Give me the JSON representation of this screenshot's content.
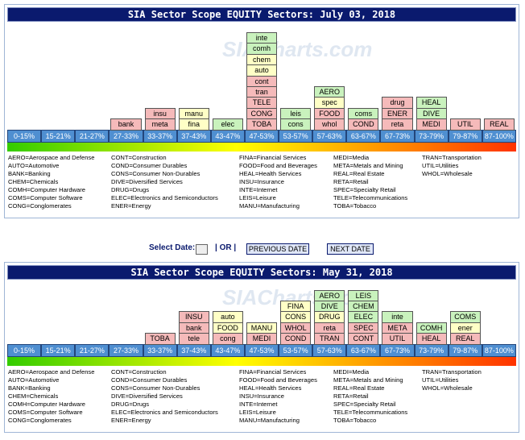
{
  "watermark": "SIACharts.com",
  "panels": [
    {
      "title": "SIA Sector Scope EQUITY Sectors: July 03, 2018",
      "columns": [
        {
          "range": "0-15%",
          "sectors": []
        },
        {
          "range": "15-21%",
          "sectors": []
        },
        {
          "range": "21-27%",
          "sectors": []
        },
        {
          "range": "27-33%",
          "sectors": [
            {
              "label": "bank",
              "color": "#f5baba"
            }
          ]
        },
        {
          "range": "33-37%",
          "sectors": [
            {
              "label": "meta",
              "color": "#f5baba"
            },
            {
              "label": "insu",
              "color": "#f5baba"
            }
          ]
        },
        {
          "range": "37-43%",
          "sectors": [
            {
              "label": "fina",
              "color": "#ffffc6"
            },
            {
              "label": "manu",
              "color": "#ffffc6"
            }
          ]
        },
        {
          "range": "43-47%",
          "sectors": [
            {
              "label": "elec",
              "color": "#c9f2bd"
            }
          ]
        },
        {
          "range": "47-53%",
          "sectors": [
            {
              "label": "TOBA",
              "color": "#f5baba"
            },
            {
              "label": "CONG",
              "color": "#f5baba"
            },
            {
              "label": "TELE",
              "color": "#f5baba"
            },
            {
              "label": "tran",
              "color": "#f5baba"
            },
            {
              "label": "cont",
              "color": "#f5baba"
            },
            {
              "label": "auto",
              "color": "#ffffc6"
            },
            {
              "label": "chem",
              "color": "#ffffc6"
            },
            {
              "label": "comh",
              "color": "#c9f2bd"
            },
            {
              "label": "inte",
              "color": "#c9f2bd"
            }
          ]
        },
        {
          "range": "53-57%",
          "sectors": [
            {
              "label": "cons",
              "color": "#c9f2bd"
            },
            {
              "label": "leis",
              "color": "#c9f2bd"
            }
          ]
        },
        {
          "range": "57-63%",
          "sectors": [
            {
              "label": "whol",
              "color": "#f5baba"
            },
            {
              "label": "FOOD",
              "color": "#f5baba"
            },
            {
              "label": "spec",
              "color": "#ffffc6"
            },
            {
              "label": "AERO",
              "color": "#c9f2bd"
            }
          ]
        },
        {
          "range": "63-67%",
          "sectors": [
            {
              "label": "COND",
              "color": "#f5baba"
            },
            {
              "label": "coms",
              "color": "#c9f2bd"
            }
          ]
        },
        {
          "range": "67-73%",
          "sectors": [
            {
              "label": "reta",
              "color": "#f5baba"
            },
            {
              "label": "ENER",
              "color": "#f5baba"
            },
            {
              "label": "drug",
              "color": "#f5baba"
            }
          ]
        },
        {
          "range": "73-79%",
          "sectors": [
            {
              "label": "MEDI",
              "color": "#f5baba"
            },
            {
              "label": "DIVE",
              "color": "#c9f2bd"
            },
            {
              "label": "HEAL",
              "color": "#c9f2bd"
            }
          ]
        },
        {
          "range": "79-87%",
          "sectors": [
            {
              "label": "UTIL",
              "color": "#f5baba"
            }
          ]
        },
        {
          "range": "87-100%",
          "sectors": [
            {
              "label": "REAL",
              "color": "#f5baba"
            }
          ]
        }
      ],
      "legend": [
        [
          "AERO=Aerospace and Defense",
          "AUTO=Automotive",
          "BANK=Banking",
          "CHEM=Chemicals",
          "COMH=Computer Hardware",
          "COMS=Computer Software",
          "CONG=Conglomerates"
        ],
        [
          "CONT=Construction",
          "COND=Consumer Durables",
          "CONS=Consumer Non-Durables",
          "DIVE=Diversified Services",
          "DRUG=Drugs",
          "ELEC=Electronics and Semiconductors",
          "ENER=Energy"
        ],
        [
          "FINA=Financial Services",
          "FOOD=Food and Beverages",
          "HEAL=Health Services",
          "INSU=Insurance",
          "INTE=Internet",
          "LEIS=Leisure",
          "MANU=Manufacturing"
        ],
        [
          "MEDI=Media",
          "META=Metals and Mining",
          "REAL=Real Estate",
          "RETA=Retail",
          "SPEC=Specialty Retail",
          "TELE=Telecommunications",
          "TOBA=Tobacco"
        ],
        [
          "TRAN=Transportation",
          "UTIL=Utilities",
          "WHOL=Wholesale"
        ]
      ]
    },
    {
      "title": "SIA Sector Scope EQUITY Sectors: May 31, 2018",
      "columns": [
        {
          "range": "0-15%",
          "sectors": []
        },
        {
          "range": "15-21%",
          "sectors": []
        },
        {
          "range": "21-27%",
          "sectors": []
        },
        {
          "range": "27-33%",
          "sectors": []
        },
        {
          "range": "33-37%",
          "sectors": [
            {
              "label": "TOBA",
              "color": "#f5baba"
            }
          ]
        },
        {
          "range": "37-43%",
          "sectors": [
            {
              "label": "tele",
              "color": "#f5baba"
            },
            {
              "label": "bank",
              "color": "#f5baba"
            },
            {
              "label": "INSU",
              "color": "#f5baba"
            }
          ]
        },
        {
          "range": "43-47%",
          "sectors": [
            {
              "label": "cong",
              "color": "#f5baba"
            },
            {
              "label": "FOOD",
              "color": "#ffffc6"
            },
            {
              "label": "auto",
              "color": "#ffffc6"
            }
          ]
        },
        {
          "range": "47-53%",
          "sectors": [
            {
              "label": "MEDI",
              "color": "#f5baba"
            },
            {
              "label": "MANU",
              "color": "#ffffc6"
            }
          ]
        },
        {
          "range": "53-57%",
          "sectors": [
            {
              "label": "COND",
              "color": "#f5baba"
            },
            {
              "label": "WHOL",
              "color": "#f5baba"
            },
            {
              "label": "CONS",
              "color": "#ffffc6"
            },
            {
              "label": "FINA",
              "color": "#ffffc6"
            }
          ]
        },
        {
          "range": "57-63%",
          "sectors": [
            {
              "label": "TRAN",
              "color": "#f5baba"
            },
            {
              "label": "reta",
              "color": "#f5baba"
            },
            {
              "label": "DRUG",
              "color": "#ffffc6"
            },
            {
              "label": "DIVE",
              "color": "#c9f2bd"
            },
            {
              "label": "AERO",
              "color": "#c9f2bd"
            }
          ]
        },
        {
          "range": "63-67%",
          "sectors": [
            {
              "label": "CONT",
              "color": "#f5baba"
            },
            {
              "label": "SPEC",
              "color": "#f5baba"
            },
            {
              "label": "ELEC",
              "color": "#c9f2bd"
            },
            {
              "label": "CHEM",
              "color": "#c9f2bd"
            },
            {
              "label": "LEIS",
              "color": "#c9f2bd"
            }
          ]
        },
        {
          "range": "67-73%",
          "sectors": [
            {
              "label": "UTIL",
              "color": "#f5baba"
            },
            {
              "label": "META",
              "color": "#f5baba"
            },
            {
              "label": "inte",
              "color": "#c9f2bd"
            }
          ]
        },
        {
          "range": "73-79%",
          "sectors": [
            {
              "label": "HEAL",
              "color": "#f5baba"
            },
            {
              "label": "COMH",
              "color": "#c9f2bd"
            }
          ]
        },
        {
          "range": "79-87%",
          "sectors": [
            {
              "label": "REAL",
              "color": "#f5baba"
            },
            {
              "label": "ener",
              "color": "#ffffc6"
            },
            {
              "label": "COMS",
              "color": "#c9f2bd"
            }
          ]
        },
        {
          "range": "87-100%",
          "sectors": []
        }
      ],
      "legend": [
        [
          "AERO=Aerospace and Defense",
          "AUTO=Automotive",
          "BANK=Banking",
          "CHEM=Chemicals",
          "COMH=Computer Hardware",
          "COMS=Computer Software",
          "CONG=Conglomerates"
        ],
        [
          "CONT=Construction",
          "COND=Consumer Durables",
          "CONS=Consumer Non-Durables",
          "DIVE=Diversified Services",
          "DRUG=Drugs",
          "ELEC=Electronics and Semiconductors",
          "ENER=Energy"
        ],
        [
          "FINA=Financial Services",
          "FOOD=Food and Beverages",
          "HEAL=Health Services",
          "INSU=Insurance",
          "INTE=Internet",
          "LEIS=Leisure",
          "MANU=Manufacturing"
        ],
        [
          "MEDI=Media",
          "META=Metals and Mining",
          "REAL=Real Estate",
          "RETA=Retail",
          "SPEC=Specialty Retail",
          "TELE=Telecommunications",
          "TOBA=Tobacco"
        ],
        [
          "TRAN=Transportation",
          "UTIL=Utilities",
          "WHOL=Wholesale"
        ]
      ]
    }
  ],
  "controls": {
    "label": "Select Date:",
    "separator": "| OR |",
    "previous": "PREVIOUS DATE",
    "next": "NEXT DATE"
  }
}
